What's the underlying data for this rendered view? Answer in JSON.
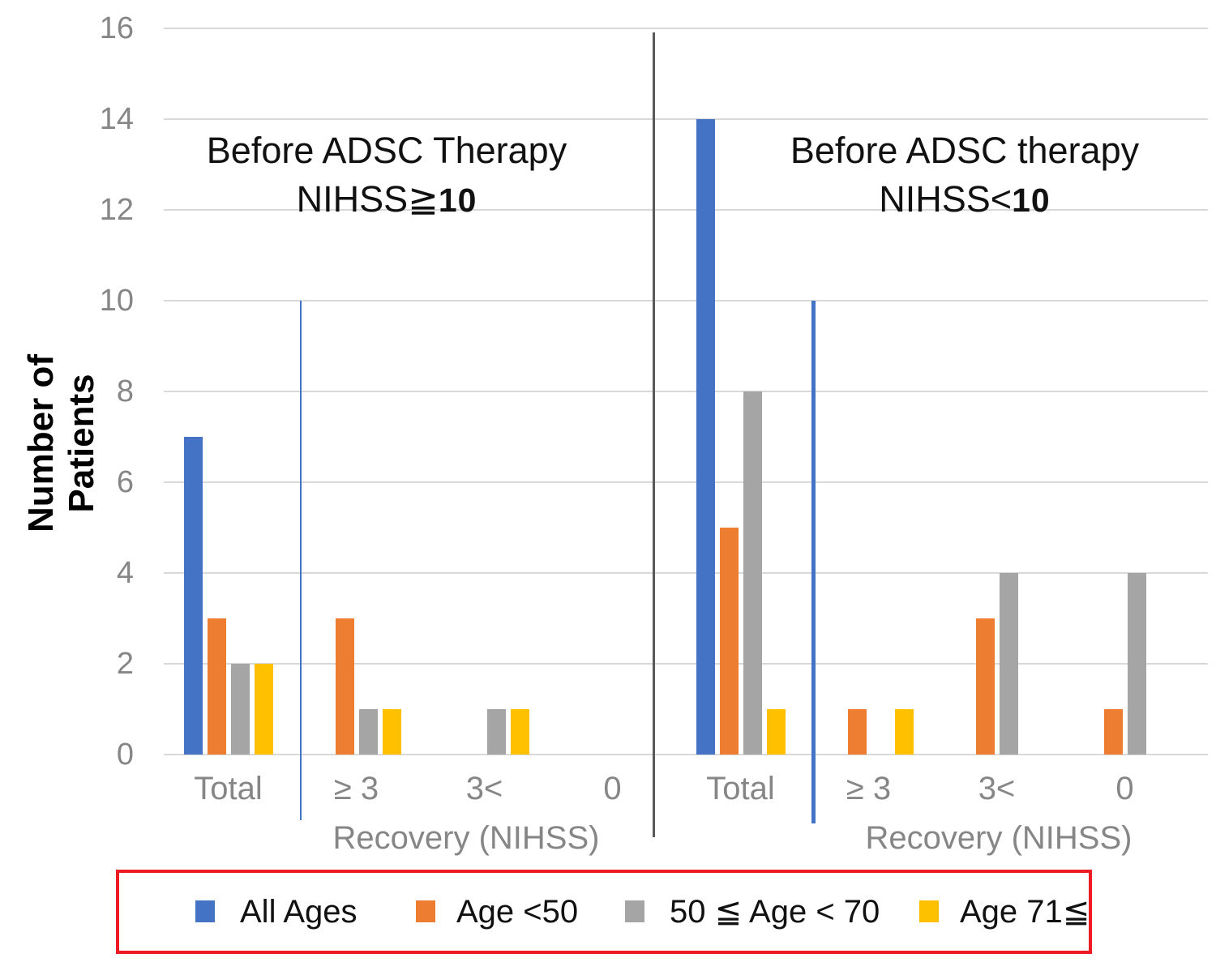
{
  "chart_data": {
    "type": "bar",
    "ylabel": "Number of Patients",
    "ylim": [
      0,
      16
    ],
    "yticks": [
      0,
      2,
      4,
      6,
      8,
      10,
      12,
      14,
      16
    ],
    "grid": "horizontal",
    "legend_position": "bottom, red-boxed",
    "panels": [
      {
        "title_line1": "Before ADSC Therapy",
        "title_line2_prefix": "NIHSS≧",
        "title_line2_num": "10",
        "xlabel": "Recovery (NIHSS)"
      },
      {
        "title_line1": "Before ADSC therapy",
        "title_line2_prefix": "NIHSS<",
        "title_line2_num": "10",
        "xlabel": "Recovery (NIHSS)"
      }
    ],
    "categories": [
      "Total",
      "≥ 3",
      "3<",
      "0",
      "Total",
      "≥ 3",
      "3<",
      "0"
    ],
    "series": [
      {
        "name": "All Ages",
        "color": "#4472c4",
        "values": [
          7,
          0,
          0,
          0,
          14,
          0,
          0,
          0
        ]
      },
      {
        "name": "Age <50",
        "color": "#ed7d31",
        "values": [
          3,
          3,
          0,
          0,
          5,
          1,
          3,
          1
        ]
      },
      {
        "name": "50 ≦ Age < 70",
        "color": "#a5a5a5",
        "values": [
          2,
          1,
          1,
          0,
          8,
          0,
          4,
          4
        ]
      },
      {
        "name": "Age 71≦",
        "color": "#ffc000",
        "values": [
          2,
          1,
          1,
          0,
          1,
          1,
          0,
          0
        ]
      }
    ],
    "separators": {
      "left_blue_line": "thin blue vertical line after left Total group",
      "right_blue_line": "thick blue vertical line after right Total group",
      "center_dark_line": "dark gray vertical line dividing the two panels"
    }
  }
}
